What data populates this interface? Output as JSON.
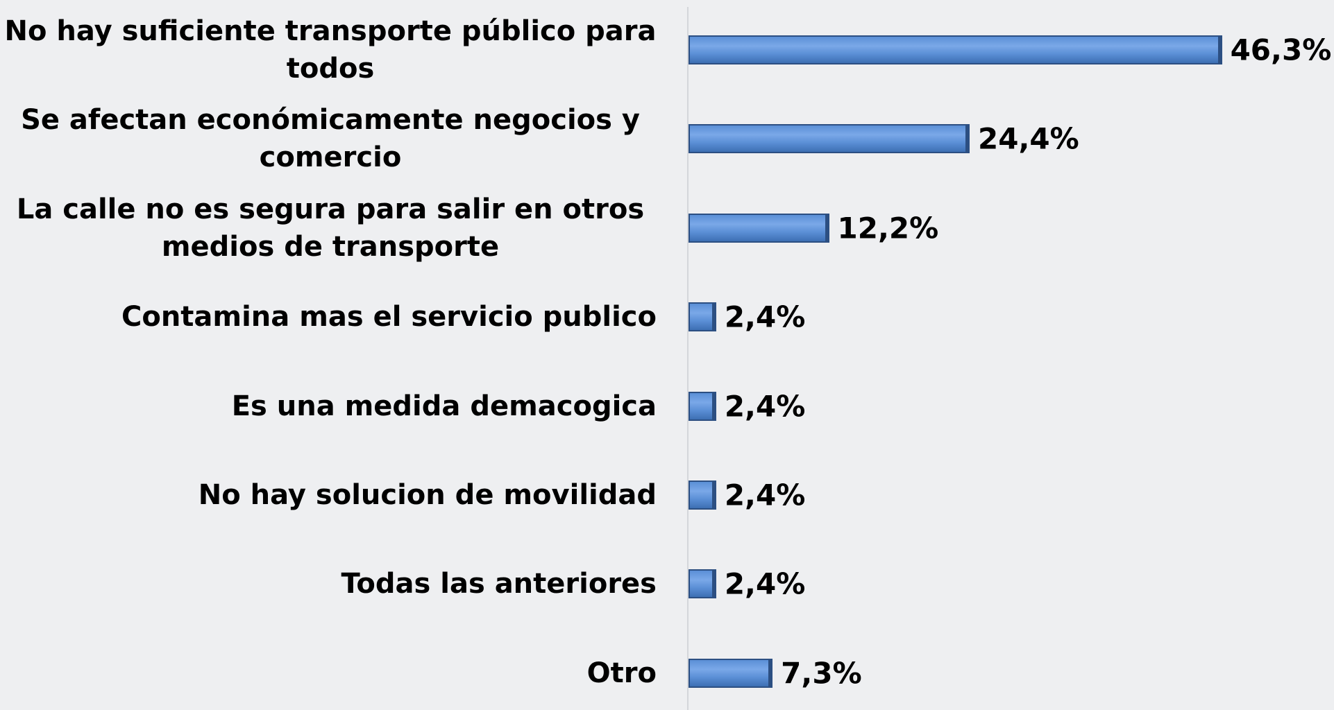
{
  "chart_data": {
    "type": "bar",
    "orientation": "horizontal",
    "categories": [
      "No hay suficiente transporte público para todos",
      "Se afectan económicamente negocios y comercio",
      "La calle no es segura para salir en otros medios de transporte",
      "Contamina mas el servicio publico",
      "Es una medida demacogica",
      "No hay solucion de movilidad",
      "Todas las anteriores",
      "Otro"
    ],
    "values": [
      46.3,
      24.4,
      12.2,
      2.4,
      2.4,
      2.4,
      2.4,
      7.3
    ],
    "value_labels": [
      "46,3%",
      "24,4%",
      "12,2%",
      "2,4%",
      "2,4%",
      "2,4%",
      "2,4%",
      "7,3%"
    ],
    "color": "#5b8fd6"
  }
}
